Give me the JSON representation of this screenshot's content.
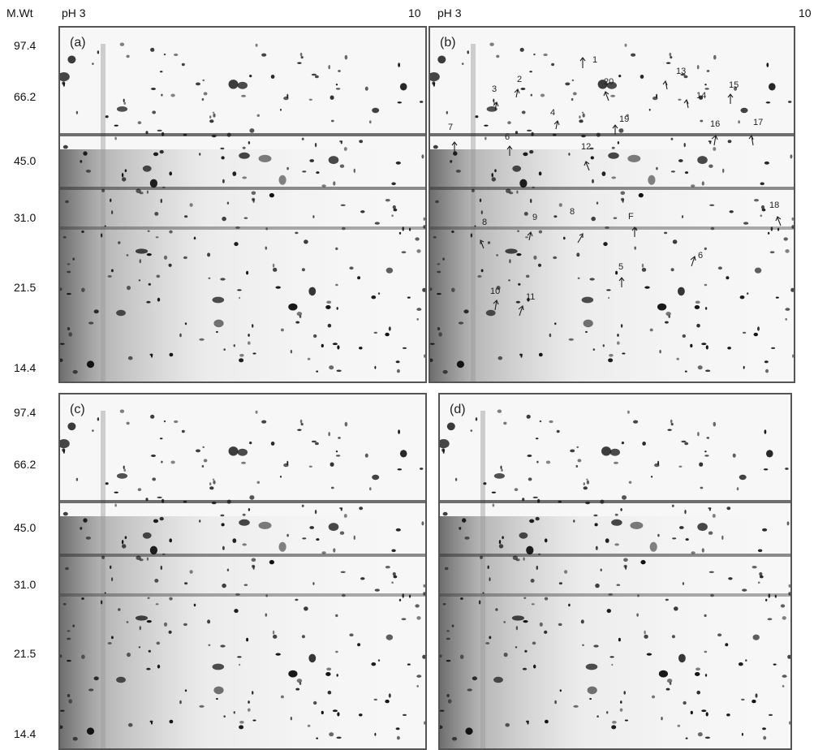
{
  "header": {
    "mwt_label": "M.Wt",
    "ph_left_a": "pH 3",
    "ph_right_a": "10",
    "ph_left_b": "pH 3",
    "ph_right_b": "10"
  },
  "mw_ticks_top": [
    "97.4",
    "66.2",
    "45.0",
    "31.0",
    "21.5",
    "14.4"
  ],
  "mw_ticks_bottom": [
    "97.4",
    "66.2",
    "45.0",
    "31.0",
    "21.5",
    "14.4"
  ],
  "panels": [
    {
      "label": "(a)"
    },
    {
      "label": "(b)"
    },
    {
      "label": "(c)"
    },
    {
      "label": "(d)"
    }
  ],
  "spot_annotations": [
    "1",
    "2",
    "3",
    "4",
    "5",
    "6",
    "7",
    "8",
    "9",
    "8",
    "F",
    "12",
    "13",
    "14",
    "15",
    "16",
    "17",
    "18",
    "19",
    "20",
    "10",
    "11",
    "5",
    "6"
  ],
  "colors": {
    "gel_bg": "#f7f7f7",
    "spot": "#111111",
    "smear": "#555555"
  }
}
